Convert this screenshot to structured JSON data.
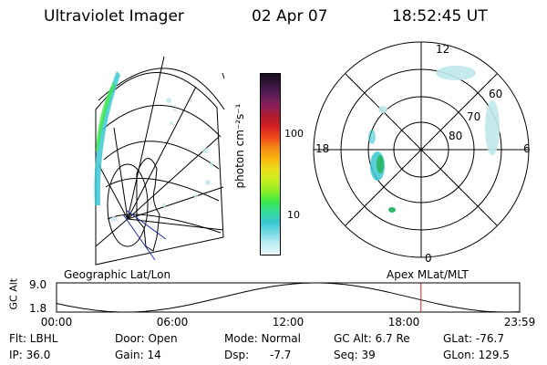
{
  "header": {
    "instrument": "Ultraviolet Imager",
    "date": "02 Apr 07",
    "time": "18:52:45 UT"
  },
  "colorbar": {
    "unit_label": "photon cm⁻²s⁻¹",
    "ticks": [
      "100",
      "10"
    ],
    "colors": [
      "#1a0f1f",
      "#34163d",
      "#5d1c58",
      "#8a1f5a",
      "#b01c2d",
      "#d62020",
      "#ee4a1c",
      "#f58a14",
      "#f6b810",
      "#eadf1c",
      "#c9ee20",
      "#8cee26",
      "#3ee84a",
      "#34dc9c",
      "#3ac8d2",
      "#7adbe6",
      "#bfeef2",
      "#e6f7f9"
    ]
  },
  "left_map": {
    "label": "Geographic Lat/Lon"
  },
  "right_map": {
    "label": "Apex MLat/MLT",
    "mlt_labels": {
      "top": "12",
      "left": "18",
      "right": "6",
      "bottom": "0"
    },
    "lat_labels": [
      "60",
      "70",
      "80"
    ]
  },
  "gc_plot": {
    "ylabel": "GC Alt",
    "ytick_top": "9.0",
    "ytick_bottom": "1.8",
    "xticks": [
      "00:00",
      "06:00",
      "12:00",
      "18:00",
      "23:59"
    ],
    "current_time_fraction": 0.787,
    "marker_color": "#d62020"
  },
  "info": {
    "flt_label": "Flt: LBHL",
    "ip_label": "IP: 36.0",
    "door_label": "Door: Open",
    "gain_label": "Gain: 14",
    "mode_label": "Mode: Normal",
    "dsp_label": "Dsp:",
    "dsp_value": "-7.7",
    "gcalt_label": "GC Alt: 6.7 Re",
    "seq_label": "Seq: 39",
    "glat_label": "GLat: -76.7",
    "glon_label": "GLon: 129.5"
  }
}
